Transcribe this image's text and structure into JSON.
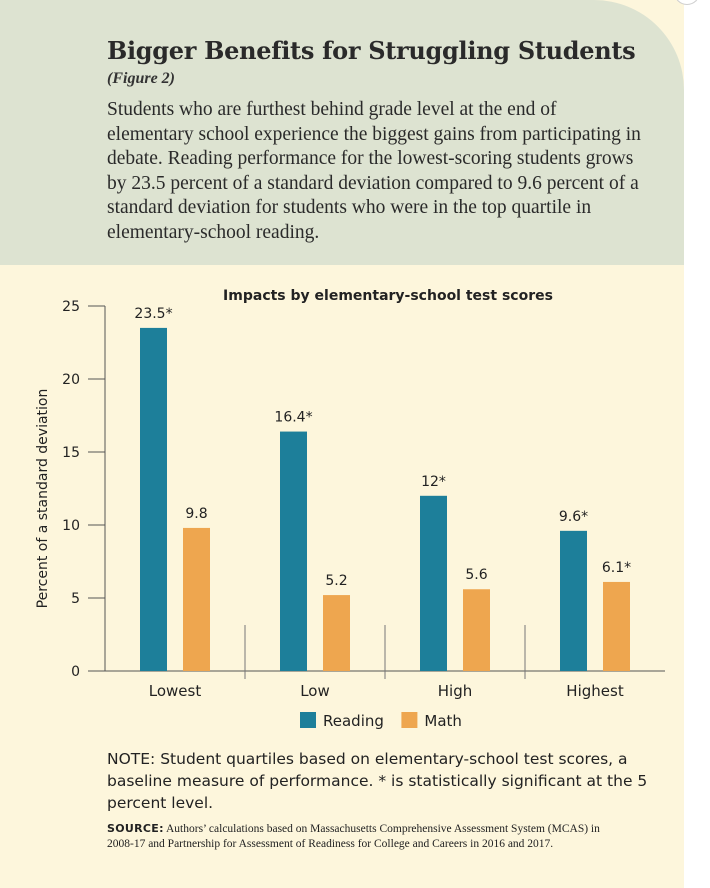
{
  "header": {
    "title": "Bigger Benefits for Struggling Students",
    "figure_label": "(Figure 2)",
    "description": "Students who are furthest behind grade level at the end of elementary school experience the biggest gains from participating in debate. Reading performance for the lowest-scoring students grows by 23.5 percent of a standard deviation compared to 9.6 percent of a standard deviation for students who were in the top quartile in elementary-school reading."
  },
  "colors": {
    "header_bg": "#dde3d1",
    "panel_bg": "#fdf6dc",
    "reading": "#1d7f9a",
    "math": "#eea64f"
  },
  "chart_data": {
    "type": "bar",
    "title": "Impacts by elementary-school test scores",
    "xlabel": "",
    "ylabel": "Percent of a standard deviation",
    "ylim": [
      0,
      25
    ],
    "yticks": [
      0,
      5,
      10,
      15,
      20,
      25
    ],
    "categories": [
      "Lowest",
      "Low",
      "High",
      "Highest"
    ],
    "series": [
      {
        "name": "Reading",
        "values": [
          23.5,
          16.4,
          12,
          9.6
        ],
        "labels": [
          "23.5*",
          "16.4*",
          "12*",
          "9.6*"
        ]
      },
      {
        "name": "Math",
        "values": [
          9.8,
          5.2,
          5.6,
          6.1
        ],
        "labels": [
          "9.8",
          "5.2",
          "5.6",
          "6.1*"
        ]
      }
    ],
    "legend_position": "bottom",
    "grid": false
  },
  "note": "NOTE: Student quartiles based on elementary-school test scores, a baseline measure of performance. * is statistically significant at the 5 percent level.",
  "source": {
    "label": "SOURCE:",
    "text": " Authors’ calculations based on Massachusetts Comprehensive Assessment System (MCAS) in 2008-17 and Partnership for Assessment of Readiness for College and Careers in 2016 and 2017."
  }
}
